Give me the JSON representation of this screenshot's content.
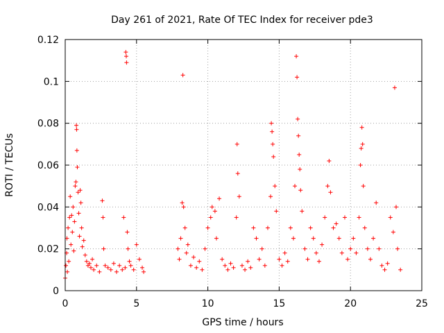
{
  "chart_data": {
    "type": "scatter",
    "title": "Day 261 of 2021, Rate Of TEC Index for receiver pde3",
    "xlabel": "GPS time / hours",
    "ylabel": "ROTI / TECUs",
    "xlim": [
      0,
      25
    ],
    "ylim": [
      0,
      0.12
    ],
    "xticks": [
      "0",
      "5",
      "10",
      "15",
      "20",
      "25"
    ],
    "yticks": [
      "0",
      "0.02",
      "0.04",
      "0.06",
      "0.08",
      "0.1",
      "0.12"
    ],
    "grid": true,
    "marker": "+",
    "color": "#ff0000",
    "series": [
      {
        "values": [
          [
            0.0,
            0.006
          ],
          [
            0.05,
            0.012
          ],
          [
            0.1,
            0.018
          ],
          [
            0.12,
            0.025
          ],
          [
            0.15,
            0.009
          ],
          [
            0.2,
            0.03
          ],
          [
            0.25,
            0.014
          ],
          [
            0.3,
            0.035
          ],
          [
            0.35,
            0.045
          ],
          [
            0.4,
            0.022
          ],
          [
            0.45,
            0.036
          ],
          [
            0.5,
            0.028
          ],
          [
            0.55,
            0.04
          ],
          [
            0.6,
            0.019
          ],
          [
            0.65,
            0.033
          ],
          [
            0.7,
            0.05
          ],
          [
            0.75,
            0.052
          ],
          [
            0.78,
            0.079
          ],
          [
            0.8,
            0.077
          ],
          [
            0.82,
            0.067
          ],
          [
            0.85,
            0.059
          ],
          [
            0.9,
            0.047
          ],
          [
            0.95,
            0.037
          ],
          [
            1.0,
            0.026
          ],
          [
            1.05,
            0.048
          ],
          [
            1.1,
            0.042
          ],
          [
            1.15,
            0.03
          ],
          [
            1.2,
            0.021
          ],
          [
            1.3,
            0.024
          ],
          [
            1.4,
            0.017
          ],
          [
            1.5,
            0.014
          ],
          [
            1.6,
            0.012
          ],
          [
            1.7,
            0.013
          ],
          [
            1.8,
            0.011
          ],
          [
            1.9,
            0.015
          ],
          [
            2.0,
            0.01
          ],
          [
            2.2,
            0.012
          ],
          [
            2.4,
            0.009
          ],
          [
            2.6,
            0.043
          ],
          [
            2.65,
            0.035
          ],
          [
            2.7,
            0.02
          ],
          [
            2.8,
            0.012
          ],
          [
            3.0,
            0.011
          ],
          [
            3.2,
            0.01
          ],
          [
            3.4,
            0.013
          ],
          [
            3.6,
            0.009
          ],
          [
            3.8,
            0.012
          ],
          [
            4.0,
            0.01
          ],
          [
            4.1,
            0.035
          ],
          [
            4.2,
            0.011
          ],
          [
            4.25,
            0.114
          ],
          [
            4.28,
            0.112
          ],
          [
            4.3,
            0.109
          ],
          [
            4.35,
            0.028
          ],
          [
            4.4,
            0.02
          ],
          [
            4.5,
            0.014
          ],
          [
            4.6,
            0.012
          ],
          [
            4.8,
            0.01
          ],
          [
            5.0,
            0.022
          ],
          [
            5.2,
            0.015
          ],
          [
            5.4,
            0.011
          ],
          [
            5.5,
            0.009
          ],
          [
            7.9,
            0.02
          ],
          [
            8.0,
            0.015
          ],
          [
            8.1,
            0.025
          ],
          [
            8.2,
            0.042
          ],
          [
            8.25,
            0.103
          ],
          [
            8.3,
            0.04
          ],
          [
            8.4,
            0.03
          ],
          [
            8.5,
            0.018
          ],
          [
            8.6,
            0.022
          ],
          [
            8.8,
            0.012
          ],
          [
            9.0,
            0.016
          ],
          [
            9.2,
            0.011
          ],
          [
            9.4,
            0.014
          ],
          [
            9.6,
            0.01
          ],
          [
            9.8,
            0.02
          ],
          [
            10.0,
            0.03
          ],
          [
            10.2,
            0.035
          ],
          [
            10.3,
            0.04
          ],
          [
            10.5,
            0.038
          ],
          [
            10.6,
            0.025
          ],
          [
            10.8,
            0.044
          ],
          [
            11.0,
            0.015
          ],
          [
            11.2,
            0.012
          ],
          [
            11.4,
            0.01
          ],
          [
            11.6,
            0.013
          ],
          [
            11.8,
            0.011
          ],
          [
            12.0,
            0.035
          ],
          [
            12.05,
            0.07
          ],
          [
            12.1,
            0.056
          ],
          [
            12.2,
            0.045
          ],
          [
            12.4,
            0.012
          ],
          [
            12.6,
            0.01
          ],
          [
            12.8,
            0.014
          ],
          [
            13.0,
            0.011
          ],
          [
            13.2,
            0.03
          ],
          [
            13.4,
            0.025
          ],
          [
            13.6,
            0.015
          ],
          [
            13.8,
            0.02
          ],
          [
            14.0,
            0.012
          ],
          [
            14.2,
            0.03
          ],
          [
            14.4,
            0.045
          ],
          [
            14.45,
            0.08
          ],
          [
            14.5,
            0.076
          ],
          [
            14.55,
            0.07
          ],
          [
            14.6,
            0.064
          ],
          [
            14.7,
            0.05
          ],
          [
            14.8,
            0.038
          ],
          [
            15.0,
            0.015
          ],
          [
            15.2,
            0.012
          ],
          [
            15.4,
            0.018
          ],
          [
            15.6,
            0.014
          ],
          [
            15.8,
            0.03
          ],
          [
            16.0,
            0.025
          ],
          [
            16.1,
            0.05
          ],
          [
            16.2,
            0.112
          ],
          [
            16.25,
            0.102
          ],
          [
            16.3,
            0.082
          ],
          [
            16.35,
            0.074
          ],
          [
            16.4,
            0.065
          ],
          [
            16.45,
            0.058
          ],
          [
            16.5,
            0.048
          ],
          [
            16.6,
            0.038
          ],
          [
            16.8,
            0.02
          ],
          [
            17.0,
            0.015
          ],
          [
            17.2,
            0.03
          ],
          [
            17.4,
            0.025
          ],
          [
            17.6,
            0.018
          ],
          [
            17.8,
            0.014
          ],
          [
            18.0,
            0.022
          ],
          [
            18.2,
            0.035
          ],
          [
            18.4,
            0.05
          ],
          [
            18.5,
            0.062
          ],
          [
            18.6,
            0.047
          ],
          [
            18.8,
            0.03
          ],
          [
            19.0,
            0.032
          ],
          [
            19.2,
            0.025
          ],
          [
            19.4,
            0.018
          ],
          [
            19.6,
            0.035
          ],
          [
            19.8,
            0.015
          ],
          [
            20.0,
            0.02
          ],
          [
            20.2,
            0.025
          ],
          [
            20.4,
            0.018
          ],
          [
            20.6,
            0.035
          ],
          [
            20.7,
            0.06
          ],
          [
            20.75,
            0.068
          ],
          [
            20.8,
            0.078
          ],
          [
            20.85,
            0.07
          ],
          [
            20.9,
            0.05
          ],
          [
            21.0,
            0.03
          ],
          [
            21.2,
            0.02
          ],
          [
            21.4,
            0.015
          ],
          [
            21.6,
            0.025
          ],
          [
            21.8,
            0.042
          ],
          [
            22.0,
            0.02
          ],
          [
            22.2,
            0.012
          ],
          [
            22.4,
            0.01
          ],
          [
            22.6,
            0.013
          ],
          [
            22.8,
            0.035
          ],
          [
            23.0,
            0.028
          ],
          [
            23.1,
            0.097
          ],
          [
            23.2,
            0.04
          ],
          [
            23.3,
            0.02
          ],
          [
            23.5,
            0.01
          ]
        ]
      }
    ]
  }
}
